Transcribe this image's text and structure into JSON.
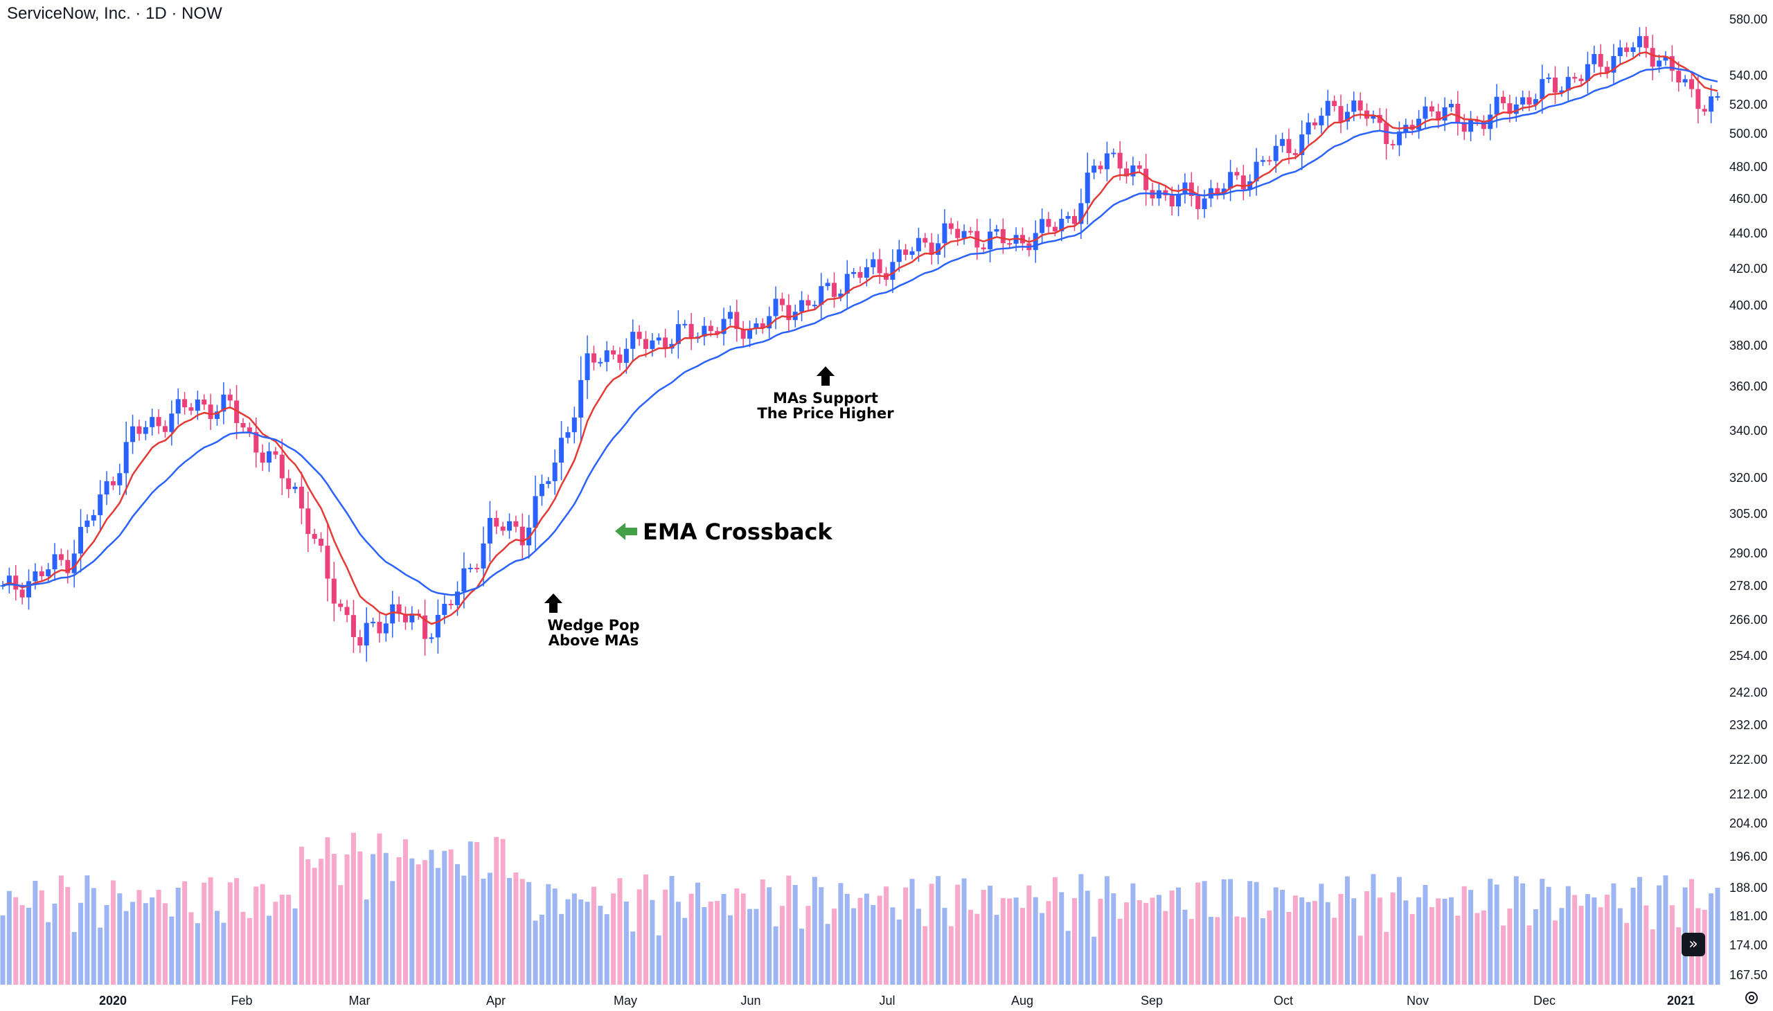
{
  "header": {
    "title": "ServiceNow, Inc. · 1D · NOW"
  },
  "colors": {
    "up": "#2962ff",
    "down": "#ec407a",
    "ema_fast": "#e53935",
    "ema_slow": "#2962ff",
    "vol_up": "#9db5f2",
    "vol_down": "#f7a8cb",
    "arrow_green": "#43a047"
  },
  "price_axis": {
    "labels": [
      "580.00",
      "540.00",
      "520.00",
      "500.00",
      "480.00",
      "460.00",
      "440.00",
      "420.00",
      "400.00",
      "380.00",
      "360.00",
      "340.00",
      "320.00",
      "305.00",
      "290.00",
      "278.00",
      "266.00",
      "254.00",
      "242.00",
      "232.00",
      "222.00",
      "212.00",
      "204.00",
      "196.00",
      "188.00",
      "181.00",
      "174.00",
      "167.50"
    ]
  },
  "time_axis": {
    "labels": [
      "2020",
      "Feb",
      "Mar",
      "Apr",
      "May",
      "Jun",
      "Jul",
      "Aug",
      "Sep",
      "Oct",
      "Nov",
      "Dec",
      "2021"
    ]
  },
  "annotations": {
    "wedge_line1": "Wedge Pop",
    "wedge_line2": "Above MAs",
    "mas_line1": "MAs Support",
    "mas_line2": "The Price Higher",
    "crossback": "EMA Crossback"
  },
  "chart_data": {
    "type": "candlestick",
    "title": "ServiceNow, Inc. · 1D · NOW",
    "scale": "log",
    "ylim": [
      167.5,
      590
    ],
    "indicators": [
      "EMA fast (red)",
      "EMA slow (blue)",
      "Volume"
    ],
    "weekly_close": [
      {
        "week": "2020-01-03",
        "close": 276
      },
      {
        "week": "2020-01-10",
        "close": 281
      },
      {
        "week": "2020-01-17",
        "close": 288
      },
      {
        "week": "2020-01-24",
        "close": 310
      },
      {
        "week": "2020-01-31",
        "close": 338
      },
      {
        "week": "2020-02-07",
        "close": 346
      },
      {
        "week": "2020-02-14",
        "close": 352
      },
      {
        "week": "2020-02-21",
        "close": 350
      },
      {
        "week": "2020-02-28",
        "close": 330
      },
      {
        "week": "2020-03-06",
        "close": 315
      },
      {
        "week": "2020-03-13",
        "close": 280
      },
      {
        "week": "2020-03-20",
        "close": 258
      },
      {
        "week": "2020-03-27",
        "close": 270
      },
      {
        "week": "2020-04-03",
        "close": 262
      },
      {
        "week": "2020-04-10",
        "close": 275
      },
      {
        "week": "2020-04-17",
        "close": 300
      },
      {
        "week": "2020-04-24",
        "close": 298
      },
      {
        "week": "2020-05-01",
        "close": 325
      },
      {
        "week": "2020-05-08",
        "close": 370
      },
      {
        "week": "2020-05-15",
        "close": 378
      },
      {
        "week": "2020-05-22",
        "close": 382
      },
      {
        "week": "2020-05-29",
        "close": 385
      },
      {
        "week": "2020-06-05",
        "close": 390
      },
      {
        "week": "2020-06-12",
        "close": 388
      },
      {
        "week": "2020-06-19",
        "close": 398
      },
      {
        "week": "2020-06-26",
        "close": 402
      },
      {
        "week": "2020-07-03",
        "close": 415
      },
      {
        "week": "2020-07-10",
        "close": 420
      },
      {
        "week": "2020-07-17",
        "close": 430
      },
      {
        "week": "2020-07-24",
        "close": 440
      },
      {
        "week": "2020-07-31",
        "close": 438
      },
      {
        "week": "2020-08-07",
        "close": 435
      },
      {
        "week": "2020-08-14",
        "close": 440
      },
      {
        "week": "2020-08-21",
        "close": 452
      },
      {
        "week": "2020-08-28",
        "close": 490
      },
      {
        "week": "2020-09-04",
        "close": 470
      },
      {
        "week": "2020-09-11",
        "close": 460
      },
      {
        "week": "2020-09-18",
        "close": 462
      },
      {
        "week": "2020-09-25",
        "close": 470
      },
      {
        "week": "2020-10-02",
        "close": 485
      },
      {
        "week": "2020-10-09",
        "close": 498
      },
      {
        "week": "2020-10-16",
        "close": 520
      },
      {
        "week": "2020-10-23",
        "close": 512
      },
      {
        "week": "2020-10-30",
        "close": 495
      },
      {
        "week": "2020-11-06",
        "close": 520
      },
      {
        "week": "2020-11-13",
        "close": 505
      },
      {
        "week": "2020-11-20",
        "close": 515
      },
      {
        "week": "2020-11-27",
        "close": 525
      },
      {
        "week": "2020-12-04",
        "close": 535
      },
      {
        "week": "2020-12-11",
        "close": 545
      },
      {
        "week": "2020-12-18",
        "close": 560
      },
      {
        "week": "2020-12-25",
        "close": 555
      },
      {
        "week": "2021-01-01",
        "close": 525
      },
      {
        "week": "2021-01-08",
        "close": 520
      }
    ]
  }
}
